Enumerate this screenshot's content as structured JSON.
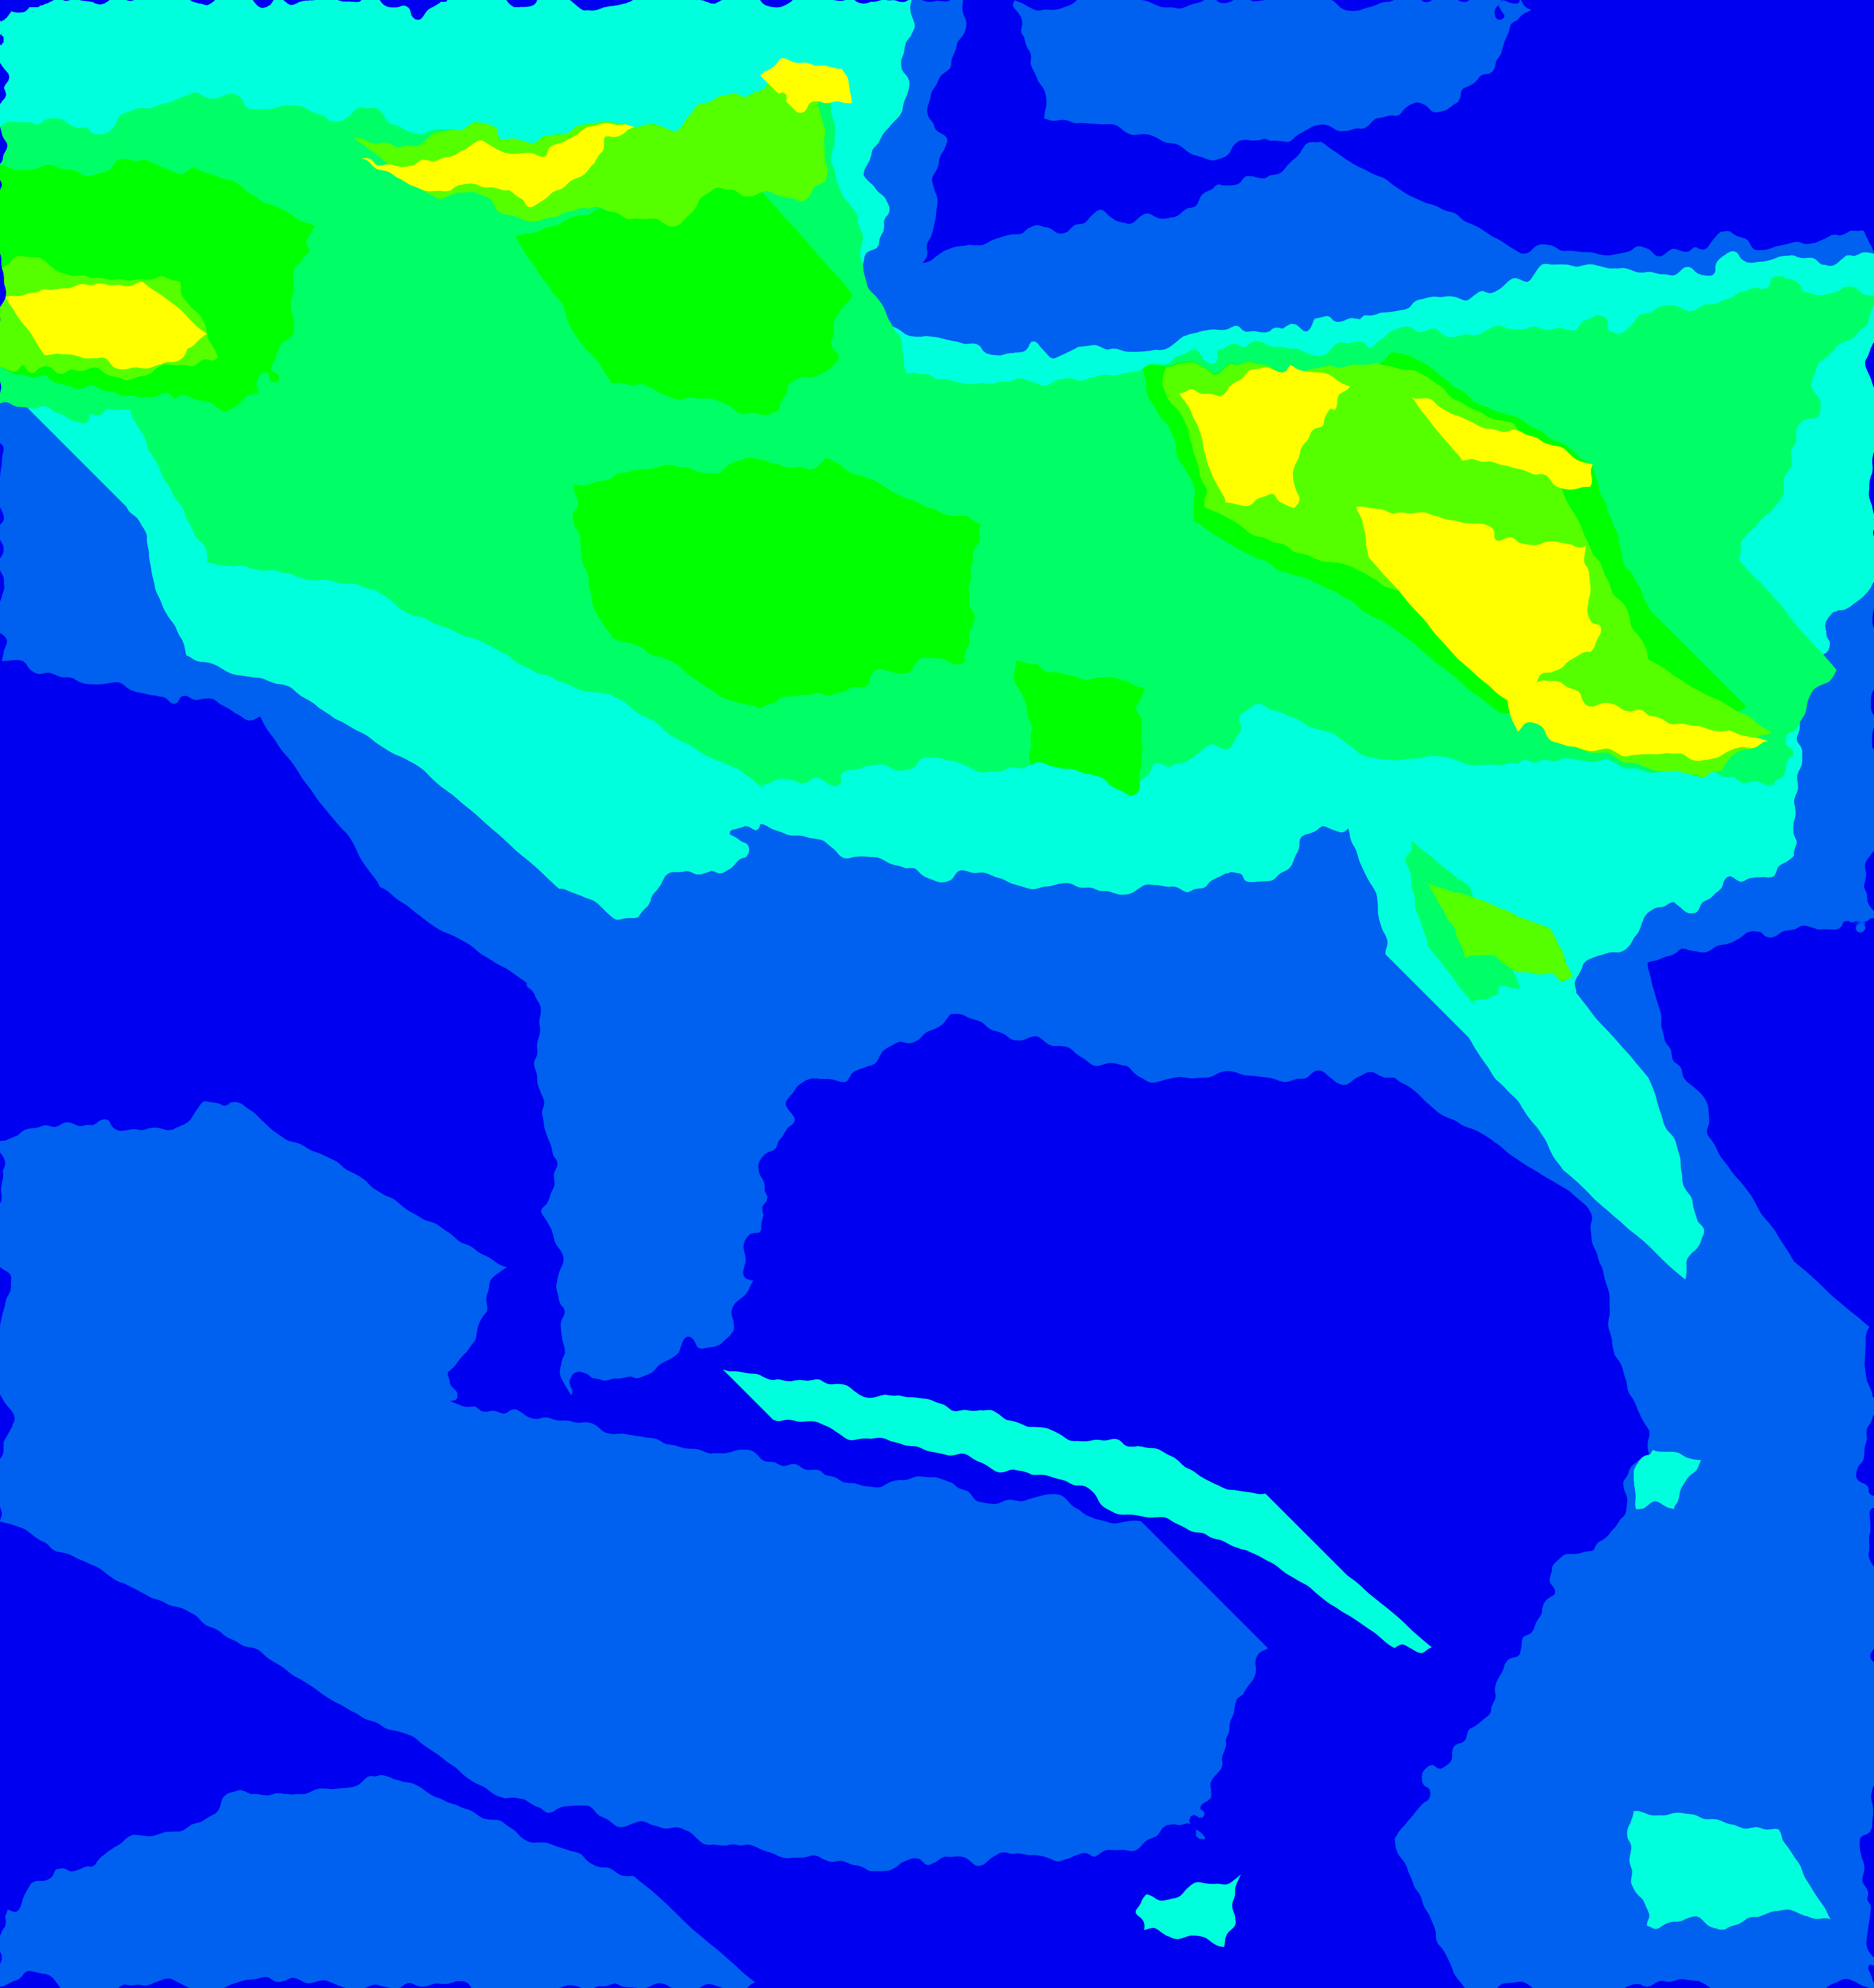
{
  "image": {
    "palette": {
      "level_0": "#0000f0",
      "level_1": "#0060f0",
      "level_2": "#00ffdd",
      "level_3": "#00ff66",
      "level_4": "#00ff00",
      "level_5": "#55ff00",
      "level_6": "#ffff00"
    }
  }
}
